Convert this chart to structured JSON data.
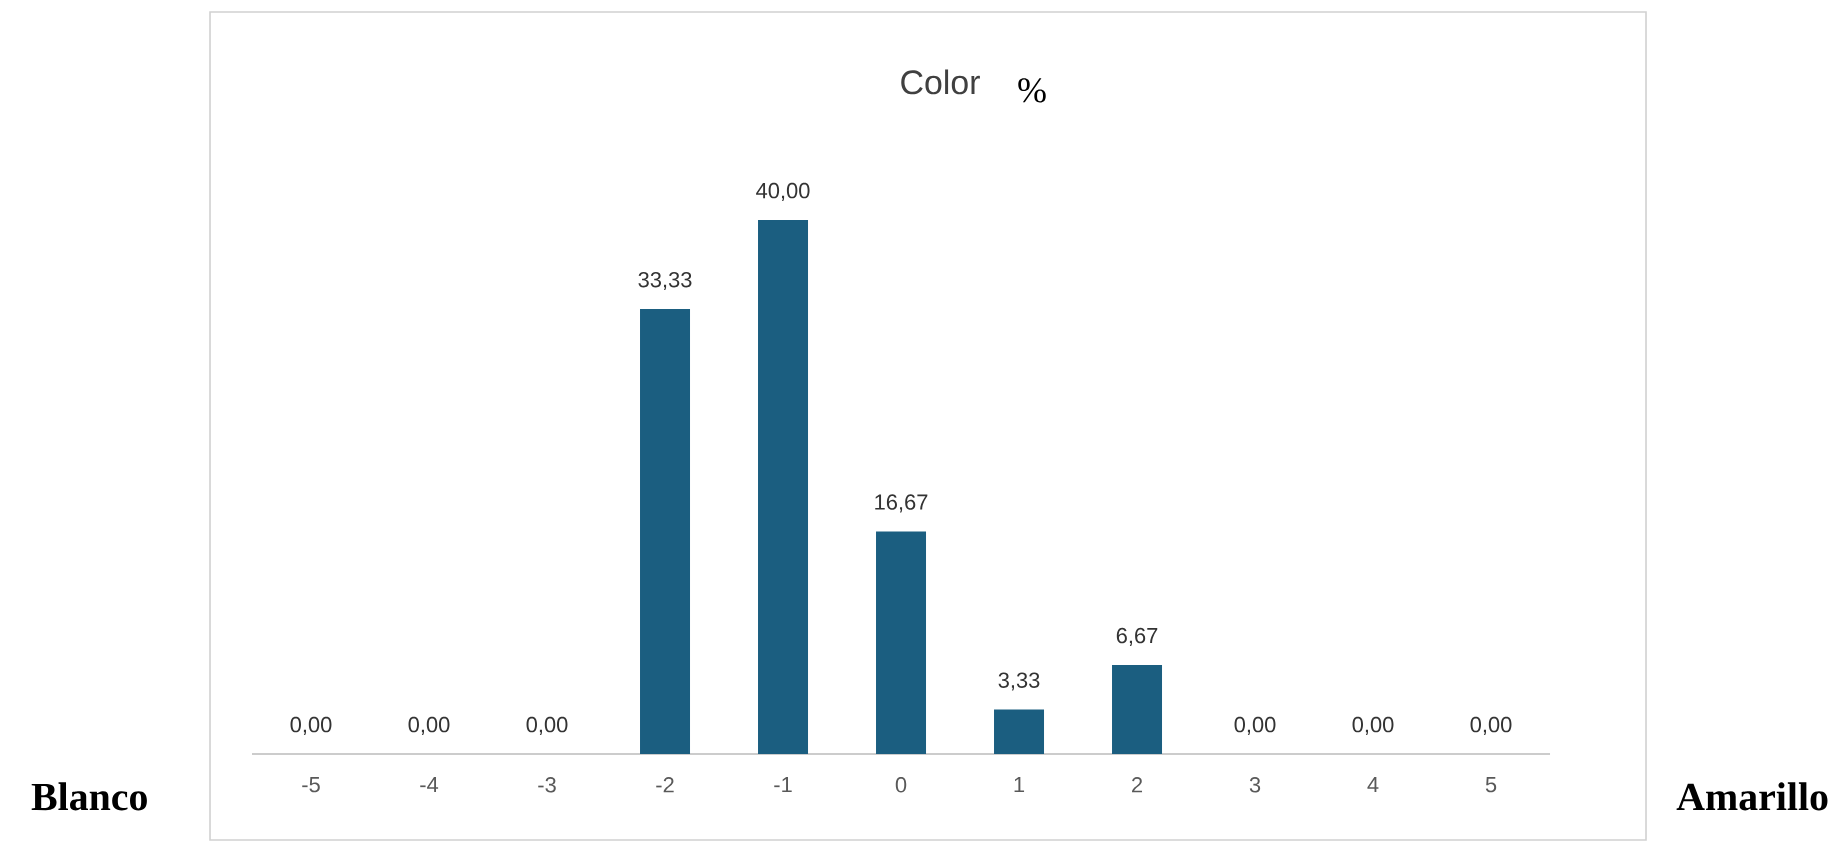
{
  "chart_data": {
    "type": "bar",
    "title": "Color",
    "subtitle": "%",
    "categories": [
      "-5",
      "-4",
      "-3",
      "-2",
      "-1",
      "0",
      "1",
      "2",
      "3",
      "4",
      "5"
    ],
    "values": [
      0,
      0,
      0,
      33.33,
      40,
      16.67,
      3.33,
      6.67,
      0,
      0,
      0
    ],
    "value_labels": [
      "0,00",
      "0,00",
      "0,00",
      "33,33",
      "40,00",
      "16,67",
      "3,33",
      "6,67",
      "0,00",
      "0,00",
      "0,00"
    ],
    "color": "#1b5e80",
    "annotations": [
      "Blanco",
      "Amarillo"
    ]
  }
}
